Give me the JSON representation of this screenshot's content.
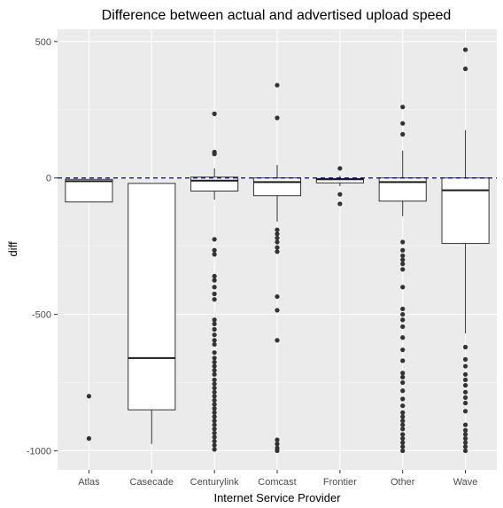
{
  "chart_data": {
    "type": "boxplot",
    "title": "Difference between actual and advertised upload speed",
    "xlabel": "Internet Service Provider",
    "ylabel": "diff",
    "ylim": [
      -1070,
      545
    ],
    "yticks": [
      500,
      0,
      -500,
      -1000
    ],
    "ytick_labels": [
      "500",
      "0",
      "-500",
      "-1000"
    ],
    "reference_line": {
      "y": 0,
      "style": "dashed",
      "color": "#00008b"
    },
    "panel_background": "#ebebeb",
    "grid": true,
    "categories": [
      "Atlas",
      "Casecade",
      "Centurylink",
      "Comcast",
      "Frontier",
      "Other",
      "Wave"
    ],
    "boxes": [
      {
        "name": "Atlas",
        "min": -88,
        "q1": -88,
        "median": -12,
        "q3": -5,
        "max": -5,
        "outliers": [
          -800,
          -955
        ]
      },
      {
        "name": "Casecade",
        "min": -975,
        "q1": -850,
        "median": -660,
        "q3": -20,
        "max": -20,
        "outliers": []
      },
      {
        "name": "Centurylink",
        "min": -80,
        "q1": -48,
        "median": -10,
        "q3": 3,
        "max": 35,
        "outliers": [
          235,
          95,
          88,
          -225,
          -265,
          -280,
          -360,
          -375,
          -400,
          -425,
          -445,
          -520,
          -535,
          -555,
          -575,
          -595,
          -610,
          -640,
          -660,
          -675,
          -690,
          -705,
          -720,
          -740,
          -755,
          -770,
          -785,
          -800,
          -815,
          -830,
          -845,
          -860,
          -875,
          -890,
          -905,
          -920,
          -935,
          -950,
          -965,
          -980,
          -995
        ]
      },
      {
        "name": "Comcast",
        "min": -160,
        "q1": -65,
        "median": -15,
        "q3": 0,
        "max": 48,
        "outliers": [
          340,
          220,
          -190,
          -205,
          -220,
          -235,
          -255,
          -270,
          -435,
          -485,
          -595,
          -960,
          -975,
          -990,
          -1000
        ]
      },
      {
        "name": "Frontier",
        "min": -30,
        "q1": -18,
        "median": -5,
        "q3": -2,
        "max": 8,
        "outliers": [
          35,
          -60,
          -95
        ]
      },
      {
        "name": "Other",
        "min": -140,
        "q1": -85,
        "median": -15,
        "q3": 0,
        "max": 100,
        "outliers": [
          260,
          200,
          160,
          -235,
          -265,
          -285,
          -300,
          -315,
          -335,
          -400,
          -480,
          -500,
          -520,
          -545,
          -585,
          -630,
          -670,
          -715,
          -730,
          -750,
          -780,
          -810,
          -835,
          -860,
          -875,
          -890,
          -905,
          -920,
          -940,
          -955,
          -970,
          -985,
          -1000
        ]
      },
      {
        "name": "Wave",
        "min": -570,
        "q1": -240,
        "median": -45,
        "q3": 0,
        "max": 175,
        "outliers": [
          470,
          400,
          -620,
          -665,
          -690,
          -720,
          -740,
          -760,
          -785,
          -805,
          -825,
          -855,
          -905,
          -925,
          -940,
          -955,
          -970,
          -985,
          -1000
        ]
      }
    ]
  }
}
